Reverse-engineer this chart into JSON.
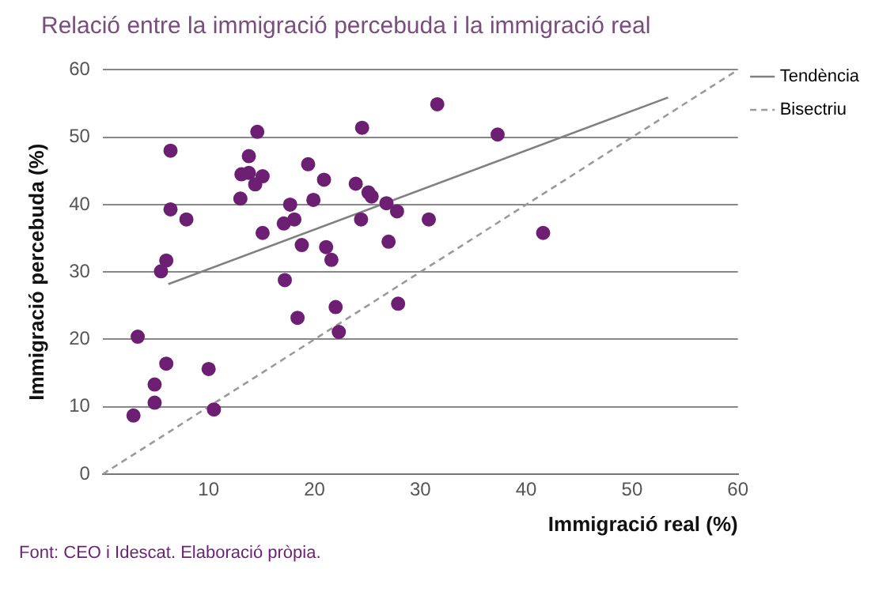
{
  "chart_data": {
    "type": "scatter",
    "title": "Relació entre la immigració percebuda i la immigració real",
    "xlabel": "Immigració real (%)",
    "ylabel": "Immigració percebuda (%)",
    "annotations": [
      "Font: CEO i Idescat. Elaboració pròpia."
    ],
    "series": [
      {
        "type": "scatter",
        "marker": "circle",
        "color": "#6d1f73",
        "x": [
          2.9,
          3.3,
          4.9,
          4.9,
          6.0,
          10.0,
          10.5,
          5.5,
          6.0,
          17.2,
          18.4,
          22.0,
          22.3,
          27.9,
          21.6,
          6.4,
          14.6,
          13.8,
          13.1,
          13.8,
          15.1,
          14.4,
          13.0,
          6.4,
          7.9,
          15.1,
          17.7,
          18.1,
          17.1,
          19.4,
          20.9,
          19.9,
          18.8,
          21.1,
          24.5,
          23.9,
          25.1,
          25.4,
          26.8,
          27.8,
          24.4,
          27.0,
          30.8,
          31.6,
          37.3,
          41.6
        ],
        "values": [
          8.7,
          20.4,
          13.3,
          10.6,
          16.4,
          15.6,
          9.6,
          30.1,
          31.7,
          28.8,
          23.2,
          24.8,
          21.1,
          25.3,
          31.8,
          48.0,
          50.8,
          47.2,
          44.5,
          44.7,
          44.2,
          43.0,
          40.9,
          39.3,
          37.8,
          35.8,
          40.0,
          37.8,
          37.2,
          46.0,
          43.7,
          40.7,
          34.0,
          33.7,
          51.4,
          43.1,
          41.8,
          41.2,
          40.2,
          39.0,
          37.8,
          34.5,
          37.8,
          54.9,
          50.4,
          35.8
        ]
      },
      {
        "type": "line",
        "marker": "none",
        "name": "Tendència",
        "color": "#808080",
        "line_style": "solid",
        "x": [
          6.2,
          53.4
        ],
        "values": [
          28.2,
          55.9
        ]
      },
      {
        "type": "line",
        "marker": "none",
        "name": "Bisectriu",
        "color": "#9a9a9a",
        "line_style": "dashed",
        "x": [
          0,
          60
        ],
        "values": [
          0,
          60
        ]
      }
    ],
    "xlim": [
      0,
      60
    ],
    "xticks": [
      10,
      20,
      30,
      40,
      50,
      60
    ],
    "ylim": [
      0,
      60
    ],
    "yticks": [
      0,
      10,
      20,
      30,
      40,
      50,
      60
    ],
    "grid": "y",
    "legend": "top right"
  }
}
